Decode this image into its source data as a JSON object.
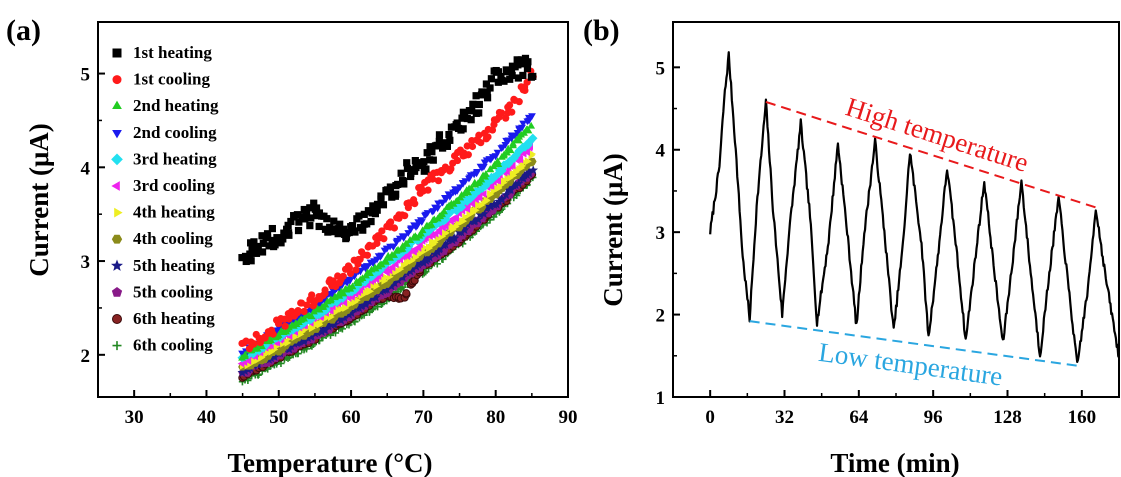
{
  "colors": {
    "high_line": "#e8191b",
    "low_line": "#2aa6e0",
    "trace": "#000000"
  },
  "chart_data": [
    {
      "panel_label": "(a)",
      "type": "scatter",
      "title": "",
      "xlabel": "Temperature (°C)",
      "ylabel": "Current (μA)",
      "xlim": [
        25,
        90
      ],
      "ylim": [
        1.55,
        5.55
      ],
      "xticks": [
        30,
        40,
        50,
        60,
        70,
        80,
        90
      ],
      "yticks": [
        2,
        3,
        4,
        5
      ],
      "grid": false,
      "legend_position": "top-left",
      "series": [
        {
          "name": "1st heating",
          "marker": "square",
          "color": "#000000",
          "x": [
            45,
            48,
            52,
            55,
            58,
            60,
            63,
            66,
            68,
            70,
            72,
            75,
            78,
            80,
            82,
            84,
            85
          ],
          "y": [
            3.05,
            3.2,
            3.38,
            3.52,
            3.3,
            3.32,
            3.5,
            3.78,
            4.0,
            4.05,
            4.22,
            4.45,
            4.72,
            4.95,
            5.0,
            5.1,
            4.95
          ]
        },
        {
          "name": "1st cooling",
          "marker": "circle",
          "color": "#ff1a1a",
          "x": [
            45,
            50,
            55,
            60,
            65,
            68,
            70,
            72,
            75,
            78,
            80,
            82,
            84,
            85
          ],
          "y": [
            2.08,
            2.32,
            2.6,
            2.92,
            3.32,
            3.58,
            3.78,
            3.92,
            4.12,
            4.3,
            4.48,
            4.62,
            4.85,
            5.0
          ]
        },
        {
          "name": "2nd heating",
          "marker": "triangle-up",
          "color": "#22cc22",
          "x": [
            45,
            50,
            55,
            60,
            65,
            70,
            75,
            80,
            85
          ],
          "y": [
            1.98,
            2.22,
            2.45,
            2.72,
            3.02,
            3.32,
            3.66,
            4.02,
            4.45
          ]
        },
        {
          "name": "2nd cooling",
          "marker": "triangle-down",
          "color": "#1a1aee",
          "x": [
            45,
            50,
            55,
            60,
            65,
            70,
            75,
            80,
            85
          ],
          "y": [
            2.02,
            2.28,
            2.52,
            2.82,
            3.12,
            3.46,
            3.8,
            4.15,
            4.55
          ]
        },
        {
          "name": "3rd heating",
          "marker": "diamond",
          "color": "#22e0f0",
          "x": [
            45,
            50,
            55,
            60,
            65,
            70,
            75,
            80,
            85
          ],
          "y": [
            1.95,
            2.2,
            2.42,
            2.68,
            2.98,
            3.28,
            3.58,
            3.92,
            4.3
          ]
        },
        {
          "name": "3rd cooling",
          "marker": "triangle-left",
          "color": "#ee22ee",
          "x": [
            45,
            50,
            55,
            60,
            65,
            70,
            75,
            80,
            85
          ],
          "y": [
            1.92,
            2.15,
            2.38,
            2.62,
            2.9,
            3.2,
            3.5,
            3.85,
            4.22
          ]
        },
        {
          "name": "4th heating",
          "marker": "triangle-right",
          "color": "#eeee22",
          "x": [
            45,
            50,
            55,
            60,
            65,
            70,
            75,
            80,
            85
          ],
          "y": [
            1.88,
            2.1,
            2.32,
            2.56,
            2.84,
            3.12,
            3.42,
            3.76,
            4.12
          ]
        },
        {
          "name": "4th cooling",
          "marker": "hexagon",
          "color": "#8b8b1a",
          "x": [
            45,
            50,
            55,
            60,
            65,
            70,
            75,
            80,
            85
          ],
          "y": [
            1.85,
            2.05,
            2.28,
            2.52,
            2.78,
            3.08,
            3.38,
            3.72,
            4.08
          ]
        },
        {
          "name": "5th heating",
          "marker": "star",
          "color": "#1a1a88",
          "x": [
            45,
            50,
            55,
            60,
            65,
            70,
            75,
            80,
            85
          ],
          "y": [
            1.82,
            2.02,
            2.22,
            2.45,
            2.72,
            3.0,
            3.3,
            3.62,
            3.98
          ]
        },
        {
          "name": "5th cooling",
          "marker": "pentagon",
          "color": "#881a88",
          "x": [
            45,
            50,
            55,
            60,
            65,
            70,
            75,
            80,
            85
          ],
          "y": [
            1.8,
            2.0,
            2.2,
            2.42,
            2.68,
            2.96,
            3.25,
            3.58,
            3.95
          ]
        },
        {
          "name": "6th heating",
          "marker": "circle-ring",
          "color": "#882222",
          "x": [
            45,
            50,
            55,
            60,
            65,
            67,
            70,
            75,
            80,
            85
          ],
          "y": [
            1.78,
            1.98,
            2.18,
            2.4,
            2.65,
            2.58,
            2.95,
            3.22,
            3.55,
            3.92
          ]
        },
        {
          "name": "6th cooling",
          "marker": "plus",
          "color": "#228822",
          "x": [
            45,
            50,
            55,
            60,
            65,
            70,
            75,
            80,
            85
          ],
          "y": [
            1.72,
            1.92,
            2.12,
            2.35,
            2.6,
            2.88,
            3.18,
            3.5,
            3.88
          ]
        }
      ]
    },
    {
      "panel_label": "(b)",
      "type": "line",
      "title": "",
      "xlabel": "Time (min)",
      "ylabel": "Current (μA)",
      "xlim": [
        -16,
        176
      ],
      "ylim": [
        1,
        5.55
      ],
      "xticks": [
        0,
        32,
        64,
        96,
        128,
        160
      ],
      "yticks": [
        1,
        2,
        3,
        4,
        5
      ],
      "grid": false,
      "series": [
        {
          "name": "",
          "x": [
            0,
            2,
            4,
            6,
            8,
            11,
            14,
            17,
            20,
            24,
            27,
            31,
            34,
            39,
            43,
            46,
            51,
            55,
            59,
            63,
            66,
            71,
            75,
            79,
            83,
            86,
            91,
            94,
            98,
            102,
            106,
            110,
            114,
            118,
            122,
            126,
            130,
            134,
            138,
            142,
            146,
            150,
            154,
            158,
            163,
            166,
            170,
            176
          ],
          "y": [
            3.0,
            3.4,
            3.8,
            4.6,
            5.15,
            4.0,
            2.7,
            1.95,
            3.3,
            4.58,
            3.3,
            2.0,
            3.0,
            4.32,
            3.2,
            1.9,
            2.9,
            4.08,
            3.0,
            1.85,
            2.9,
            4.1,
            3.0,
            1.8,
            2.85,
            3.98,
            2.85,
            1.72,
            2.7,
            3.78,
            2.8,
            1.68,
            2.65,
            3.62,
            2.6,
            1.65,
            2.6,
            3.62,
            2.5,
            1.5,
            2.5,
            3.42,
            2.4,
            1.38,
            2.4,
            3.3,
            2.5,
            1.48
          ]
        }
      ],
      "annotations": [
        {
          "text": "High temperature",
          "color": "#e8191b",
          "from": [
            24,
            4.58
          ],
          "to": [
            166,
            3.3
          ]
        },
        {
          "text": "Low temperature",
          "color": "#2aa6e0",
          "from": [
            17,
            1.92
          ],
          "to": [
            158,
            1.38
          ]
        }
      ]
    }
  ]
}
